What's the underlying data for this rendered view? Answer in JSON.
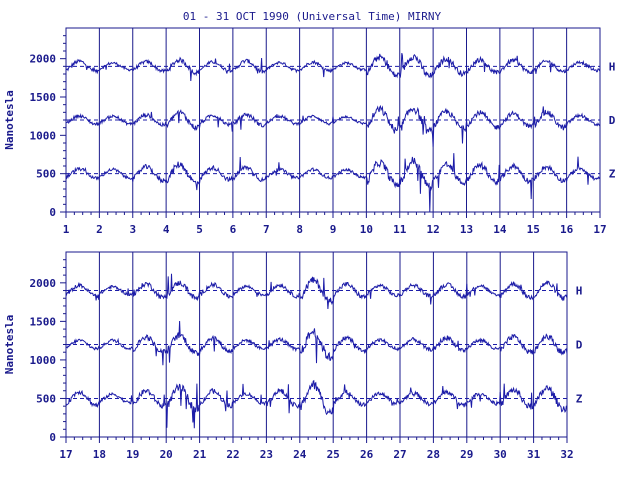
{
  "title": "01 - 31 OCT 1990 (Universal Time) MIRNY",
  "ylabel": "Nanotesla",
  "colors": {
    "trace": "#1c1ca8",
    "axis": "#1a1a8c",
    "baseline": "#1c1ca8"
  },
  "chart_data": [
    {
      "type": "line",
      "title": "01 - 31 OCT 1990 (Universal Time) MIRNY",
      "ylabel": "Nanotesla",
      "xlim": [
        1,
        17
      ],
      "ylim": [
        0,
        2400
      ],
      "yticks": [
        0,
        500,
        1000,
        1500,
        2000
      ],
      "xticks": [
        "1",
        "2",
        "3",
        "4",
        "5",
        "6",
        "7",
        "8",
        "9",
        "10",
        "11",
        "12",
        "13",
        "14",
        "15",
        "16",
        "17"
      ],
      "grid": "vertical at each day",
      "series": [
        {
          "name": "H",
          "baseline": 1900,
          "activity": [
            1.2,
            0.8,
            1.1,
            1.5,
            1.0,
            1.3,
            0.9,
            1.0,
            0.8,
            2.2,
            2.4,
            1.8,
            1.6,
            1.4,
            1.2,
            1.0
          ]
        },
        {
          "name": "D",
          "baseline": 1200,
          "activity": [
            1.0,
            0.9,
            1.2,
            1.8,
            1.1,
            1.3,
            0.9,
            0.9,
            0.8,
            2.5,
            2.8,
            2.0,
            1.7,
            1.5,
            1.8,
            1.1
          ]
        },
        {
          "name": "Z",
          "baseline": 500,
          "activity": [
            1.1,
            1.0,
            1.6,
            2.2,
            1.4,
            1.5,
            1.0,
            1.0,
            0.9,
            2.6,
            3.0,
            2.2,
            2.0,
            1.8,
            1.6,
            1.3
          ]
        }
      ]
    },
    {
      "type": "line",
      "ylabel": "Nanotesla",
      "xlim": [
        17,
        32
      ],
      "ylim": [
        0,
        2400
      ],
      "yticks": [
        0,
        500,
        1000,
        1500,
        2000
      ],
      "xticks": [
        "17",
        "18",
        "19",
        "20",
        "21",
        "22",
        "23",
        "24",
        "25",
        "26",
        "27",
        "28",
        "29",
        "30",
        "31",
        "32"
      ],
      "grid": "vertical at each day",
      "series": [
        {
          "name": "H",
          "baseline": 1900,
          "activity": [
            1.2,
            0.9,
            1.6,
            1.8,
            1.4,
            1.0,
            1.3,
            2.4,
            1.5,
            1.2,
            1.3,
            1.4,
            1.2,
            1.6,
            1.8
          ]
        },
        {
          "name": "D",
          "baseline": 1200,
          "activity": [
            1.0,
            1.0,
            1.8,
            2.2,
            1.6,
            1.0,
            1.2,
            3.0,
            1.6,
            1.1,
            1.2,
            1.6,
            1.1,
            1.8,
            2.0
          ]
        },
        {
          "name": "Z",
          "baseline": 500,
          "activity": [
            1.6,
            1.0,
            1.8,
            2.6,
            1.7,
            1.1,
            1.8,
            3.2,
            1.5,
            1.2,
            1.3,
            1.5,
            1.2,
            2.0,
            2.4
          ]
        }
      ]
    }
  ]
}
